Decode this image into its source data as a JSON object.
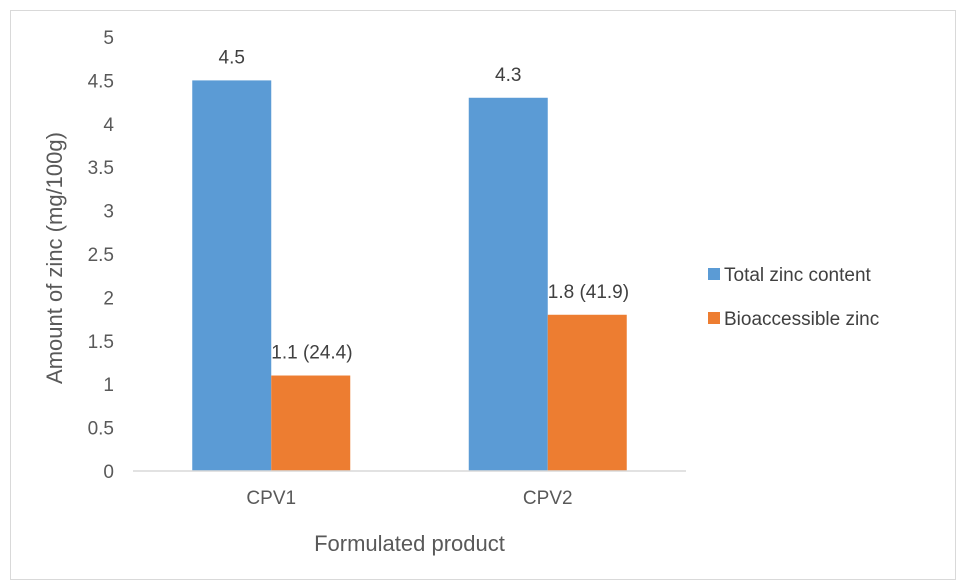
{
  "chart_data": {
    "type": "bar",
    "title": "",
    "xlabel": "Formulated product",
    "ylabel": "Amount of zinc (mg/100g)",
    "categories": [
      "CPV1",
      "CPV2"
    ],
    "series": [
      {
        "name": "Total zinc content",
        "color": "#5b9bd5",
        "values": [
          4.5,
          4.3
        ],
        "labels": [
          "4.5",
          "4.3"
        ]
      },
      {
        "name": "Bioaccessible zinc",
        "color": "#ed7d31",
        "values": [
          1.1,
          1.8
        ],
        "labels": [
          "1.1  (24.4)",
          "1.8  (41.9)"
        ]
      }
    ],
    "ylim": [
      0,
      5
    ],
    "yticks": [
      "0",
      "0.5",
      "1",
      "1.5",
      "2",
      "2.5",
      "3",
      "3.5",
      "4",
      "4.5",
      "5"
    ],
    "grid": false,
    "legend_position": "right"
  }
}
